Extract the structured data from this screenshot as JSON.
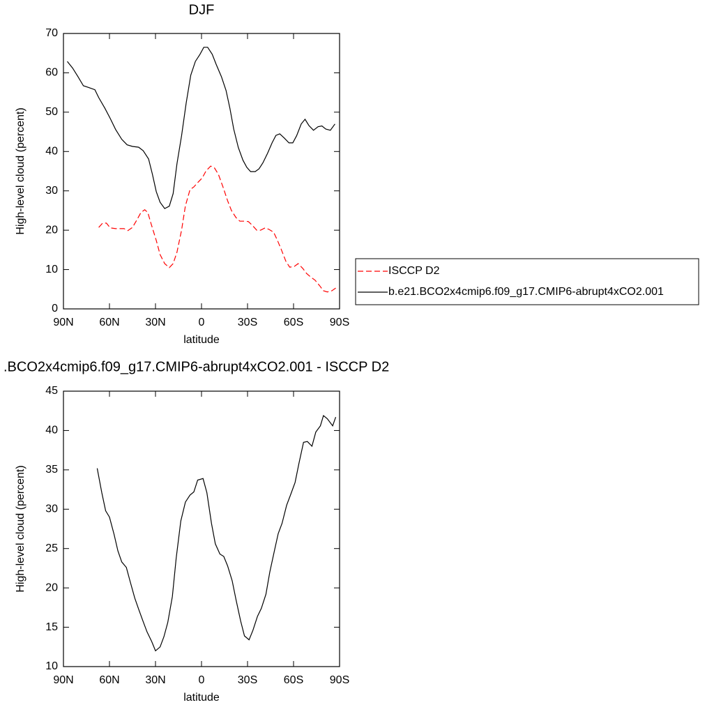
{
  "chart_data": [
    {
      "type": "line",
      "title": "DJF",
      "xlabel": "latitude",
      "ylabel": "High-level cloud (percent)",
      "xlim": [
        90,
        -90
      ],
      "xticks": [
        {
          "value": 90,
          "label": "90N"
        },
        {
          "value": 60,
          "label": "60N"
        },
        {
          "value": 30,
          "label": "30N"
        },
        0,
        {
          "value": -30,
          "label": "30S"
        },
        {
          "value": -60,
          "label": "60S"
        },
        {
          "value": -90,
          "label": "90S"
        }
      ],
      "ylim": [
        0,
        70
      ],
      "yticks": [
        0,
        10,
        20,
        30,
        40,
        50,
        60,
        70
      ],
      "legend": "right",
      "series": [
        {
          "name": "ISCCP D2",
          "color": "#ff0000",
          "line_style": "dashed",
          "x": [
            67,
            64.5,
            62,
            59.5,
            56,
            53,
            50.5,
            48,
            45,
            42,
            39.5,
            37,
            35,
            33,
            29.5,
            27,
            24,
            21,
            18.5,
            16,
            13,
            10.5,
            7.5,
            5,
            2.5,
            -0.5,
            -3,
            -6,
            -8.5,
            -11,
            -14,
            -17,
            -19.5,
            -22.5,
            -25,
            -27.5,
            -30.5,
            -33,
            -36,
            -38.5,
            -41.5,
            -44,
            -47,
            -49.5,
            -52,
            -55,
            -57.5,
            -60.5,
            -63,
            -66,
            -68.5,
            -71.5,
            -74,
            -77,
            -79.5,
            -82,
            -85,
            -87.5
          ],
          "values": [
            20.7,
            21.8,
            21.8,
            20.6,
            20.4,
            20.4,
            20.4,
            19.9,
            20.7,
            22.7,
            24.5,
            25.2,
            24.5,
            21.8,
            17.4,
            13.8,
            11.5,
            10.5,
            11.5,
            14.4,
            20,
            26.2,
            30.3,
            31,
            32.1,
            33.3,
            35.1,
            36.3,
            35.8,
            34.2,
            31,
            27.5,
            25,
            23.2,
            22.3,
            22.3,
            22.2,
            21.3,
            20,
            20,
            20.6,
            20.2,
            19.5,
            17.4,
            15.1,
            12.1,
            10.6,
            10.8,
            11.5,
            10.3,
            9,
            8,
            7.3,
            5.9,
            4.6,
            4.3,
            4.6,
            5.3
          ]
        },
        {
          "name": "b.e21.BCO2x4cmip6.f09_g17.CMIP6-abrupt4xCO2.001",
          "color": "#000000",
          "line_style": "solid",
          "x": [
            87.5,
            84,
            80.5,
            77,
            73,
            69.5,
            67,
            63,
            59.5,
            56,
            52,
            48.5,
            45,
            41,
            38,
            34.5,
            32,
            29.5,
            27,
            24,
            21,
            18.5,
            16,
            13,
            10,
            7,
            4,
            1,
            -1.5,
            -4,
            -7,
            -9.5,
            -13,
            -16,
            -18.5,
            -21,
            -24,
            -27,
            -29.5,
            -32,
            -35,
            -37.5,
            -40,
            -43,
            -46,
            -48.5,
            -51,
            -54,
            -57,
            -59.5,
            -62,
            -65,
            -67.5,
            -70,
            -73,
            -76,
            -78.5,
            -81,
            -84,
            -87
          ],
          "values": [
            62.9,
            61.2,
            59,
            56.7,
            56.2,
            55.7,
            53.7,
            51,
            48.4,
            45.6,
            43.1,
            41.7,
            41.3,
            41.1,
            40.2,
            38.1,
            34.2,
            29.8,
            27.1,
            25.5,
            26.1,
            29.3,
            36.9,
            44,
            52.3,
            59.4,
            62.9,
            64.7,
            66.5,
            66.5,
            64.7,
            62.2,
            59,
            55.5,
            51,
            45.7,
            41,
            37.8,
            36,
            34.9,
            34.9,
            35.6,
            37.1,
            39.5,
            42.2,
            44.1,
            44.5,
            43.4,
            42.2,
            42.2,
            44,
            47,
            48.2,
            46.6,
            45.4,
            46.3,
            46.5,
            45.7,
            45.4,
            47
          ]
        }
      ]
    },
    {
      "type": "line",
      "title": ".BCO2x4cmip6.f09_g17.CMIP6-abrupt4xCO2.001 - ISCCP D2",
      "xlabel": "latitude",
      "ylabel": "High-level cloud (percent)",
      "xlim": [
        90,
        -90
      ],
      "xticks": [
        {
          "value": 90,
          "label": "90N"
        },
        {
          "value": 60,
          "label": "60N"
        },
        {
          "value": 30,
          "label": "30N"
        },
        0,
        {
          "value": -30,
          "label": "30S"
        },
        {
          "value": -60,
          "label": "60S"
        },
        {
          "value": -90,
          "label": "90S"
        }
      ],
      "ylim": [
        10,
        45
      ],
      "yticks": [
        10,
        15,
        20,
        25,
        30,
        35,
        40,
        45
      ],
      "series": [
        {
          "color": "#000000",
          "line_style": "solid",
          "x": [
            68,
            65,
            62.5,
            60,
            57,
            54.5,
            52,
            49,
            46.5,
            43.5,
            41,
            38,
            35.5,
            32.5,
            30,
            27,
            24.5,
            22,
            19,
            16.5,
            13.5,
            10.5,
            7.5,
            5,
            2.5,
            -1,
            -3.5,
            -6.5,
            -9,
            -12,
            -14.5,
            -17,
            -20,
            -22.5,
            -25.5,
            -28,
            -31,
            -33.5,
            -36.5,
            -39,
            -42,
            -44.5,
            -47.5,
            -50,
            -52.5,
            -55.5,
            -58,
            -61,
            -63.5,
            -66.5,
            -69,
            -72,
            -74.5,
            -77.5,
            -79.5,
            -82,
            -85.5,
            -87.5
          ],
          "values": [
            35.2,
            32.1,
            29.8,
            29,
            26.8,
            24.7,
            23.3,
            22.6,
            20.8,
            18.7,
            17.3,
            15.7,
            14.4,
            13.2,
            12,
            12.5,
            13.8,
            15.6,
            18.9,
            23.8,
            28.5,
            30.9,
            31.8,
            32.2,
            33.7,
            33.9,
            32.1,
            28.2,
            25.6,
            24.3,
            24,
            22.8,
            20.9,
            18.5,
            15.8,
            13.9,
            13.4,
            14.6,
            16.4,
            17.4,
            19.2,
            22,
            24.7,
            26.9,
            28.2,
            30.5,
            31.8,
            33.4,
            35.8,
            38.5,
            38.6,
            38,
            39.8,
            40.6,
            41.9,
            41.5,
            40.6,
            41.7
          ]
        }
      ]
    }
  ]
}
